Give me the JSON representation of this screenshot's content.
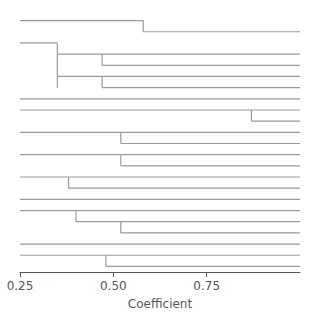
{
  "chart_data": {
    "type": "dendrogram",
    "xlabel": "Coefficient",
    "xlim": [
      0.25,
      1.0
    ],
    "xticks": [
      0.25,
      {
        "value": 0.5,
        "label": "0.50"
      },
      0.75
    ],
    "ylim": [
      23.5,
      0.5
    ],
    "tick_labels": "x",
    "grid": false,
    "color": "#999999",
    "segments": [
      [
        [
          0.25,
          1
        ],
        [
          0.58,
          1
        ]
      ],
      [
        [
          0.58,
          2
        ],
        [
          1.0,
          2
        ]
      ],
      [
        [
          0.58,
          1
        ],
        [
          0.58,
          2
        ]
      ],
      [
        [
          0.25,
          3
        ],
        [
          0.35,
          3
        ]
      ],
      [
        [
          0.35,
          3
        ],
        [
          0.35,
          7
        ]
      ],
      [
        [
          0.35,
          4
        ],
        [
          0.47,
          4
        ]
      ],
      [
        [
          0.47,
          4
        ],
        [
          1.0,
          4
        ]
      ],
      [
        [
          0.47,
          5
        ],
        [
          1.0,
          5
        ]
      ],
      [
        [
          0.47,
          4
        ],
        [
          0.47,
          5
        ]
      ],
      [
        [
          0.35,
          6
        ],
        [
          0.47,
          6
        ]
      ],
      [
        [
          0.47,
          6
        ],
        [
          1.0,
          6
        ]
      ],
      [
        [
          0.47,
          7
        ],
        [
          1.0,
          7
        ]
      ],
      [
        [
          0.47,
          6
        ],
        [
          0.47,
          7
        ]
      ],
      [
        [
          0.25,
          8
        ],
        [
          1.0,
          8
        ]
      ],
      [
        [
          0.25,
          9
        ],
        [
          0.87,
          9
        ]
      ],
      [
        [
          0.87,
          9
        ],
        [
          1.0,
          9
        ]
      ],
      [
        [
          0.87,
          10
        ],
        [
          1.0,
          10
        ]
      ],
      [
        [
          0.87,
          9
        ],
        [
          0.87,
          10
        ]
      ],
      [
        [
          0.25,
          11
        ],
        [
          0.52,
          11
        ]
      ],
      [
        [
          0.52,
          11
        ],
        [
          1.0,
          11
        ]
      ],
      [
        [
          0.52,
          12
        ],
        [
          1.0,
          12
        ]
      ],
      [
        [
          0.52,
          11
        ],
        [
          0.52,
          12
        ]
      ],
      [
        [
          0.25,
          13
        ],
        [
          0.52,
          13
        ]
      ],
      [
        [
          0.52,
          13
        ],
        [
          1.0,
          13
        ]
      ],
      [
        [
          0.52,
          14
        ],
        [
          1.0,
          14
        ]
      ],
      [
        [
          0.52,
          13
        ],
        [
          0.52,
          14
        ]
      ],
      [
        [
          0.25,
          15
        ],
        [
          0.38,
          15
        ]
      ],
      [
        [
          0.38,
          15
        ],
        [
          1.0,
          15
        ]
      ],
      [
        [
          0.38,
          16
        ],
        [
          1.0,
          16
        ]
      ],
      [
        [
          0.38,
          15
        ],
        [
          0.38,
          16
        ]
      ],
      [
        [
          0.25,
          17
        ],
        [
          1.0,
          17
        ]
      ],
      [
        [
          0.25,
          18
        ],
        [
          0.4,
          18
        ]
      ],
      [
        [
          0.4,
          18
        ],
        [
          1.0,
          18
        ]
      ],
      [
        [
          0.4,
          19
        ],
        [
          0.52,
          19
        ]
      ],
      [
        [
          0.52,
          19
        ],
        [
          1.0,
          19
        ]
      ],
      [
        [
          0.52,
          20
        ],
        [
          1.0,
          20
        ]
      ],
      [
        [
          0.4,
          18
        ],
        [
          0.4,
          19
        ]
      ],
      [
        [
          0.52,
          19
        ],
        [
          0.52,
          20
        ]
      ],
      [
        [
          0.25,
          21
        ],
        [
          1.0,
          21
        ]
      ],
      [
        [
          0.25,
          22
        ],
        [
          0.48,
          22
        ]
      ],
      [
        [
          0.48,
          22
        ],
        [
          1.0,
          22
        ]
      ],
      [
        [
          0.48,
          23
        ],
        [
          1.0,
          23
        ]
      ],
      [
        [
          0.48,
          22
        ],
        [
          0.48,
          23
        ]
      ]
    ]
  }
}
